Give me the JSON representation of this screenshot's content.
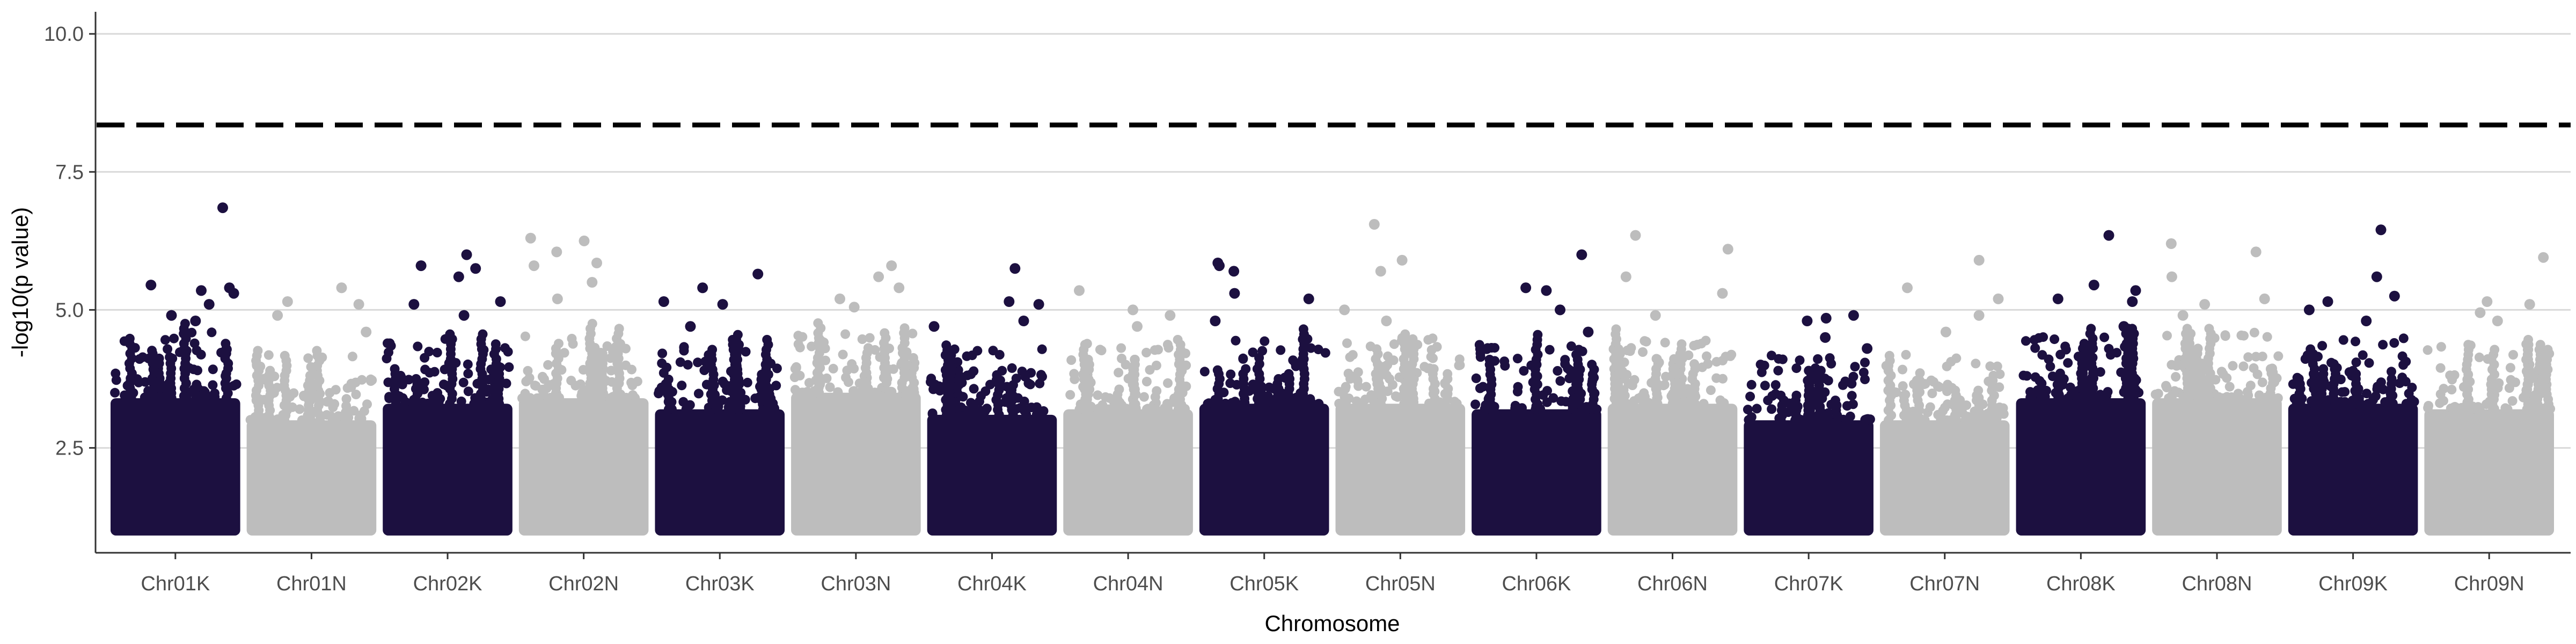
{
  "chart_data": {
    "type": "scatter",
    "subtype": "manhattan",
    "xlabel": "Chromosome",
    "ylabel": "-log10(p value)",
    "ylim": [
      0.6,
      10.4
    ],
    "yticks": [
      2.5,
      5.0,
      7.5,
      10.0
    ],
    "ytick_labels": [
      "2.5",
      "5.0",
      "7.5",
      "10.0"
    ],
    "grid": "horizontal major gridlines only",
    "significance_threshold": 8.35,
    "colors": {
      "dark": "#1c1040",
      "light": "#bdbdbd",
      "threshold": "#000000",
      "grid": "#d9d9d9"
    },
    "chromosomes": [
      {
        "name": "Chr01K",
        "color": "dark",
        "band_top": 3.4,
        "peaks": [
          6.85,
          5.45,
          5.4,
          5.35,
          5.3,
          5.1,
          4.9,
          4.8
        ]
      },
      {
        "name": "Chr01N",
        "color": "light",
        "band_top": 3.0,
        "peaks": [
          5.4,
          5.15,
          5.1,
          4.9,
          4.6
        ]
      },
      {
        "name": "Chr02K",
        "color": "dark",
        "band_top": 3.3,
        "peaks": [
          6.0,
          5.8,
          5.75,
          5.6,
          5.15,
          5.1,
          4.9
        ]
      },
      {
        "name": "Chr02N",
        "color": "light",
        "band_top": 3.4,
        "peaks": [
          6.3,
          6.25,
          6.05,
          5.85,
          5.8,
          5.5,
          5.2
        ]
      },
      {
        "name": "Chr03K",
        "color": "dark",
        "band_top": 3.2,
        "peaks": [
          5.65,
          5.4,
          5.15,
          5.1,
          4.7
        ]
      },
      {
        "name": "Chr03N",
        "color": "light",
        "band_top": 3.5,
        "peaks": [
          5.8,
          5.6,
          5.4,
          5.2,
          5.05
        ]
      },
      {
        "name": "Chr04K",
        "color": "dark",
        "band_top": 3.1,
        "peaks": [
          5.75,
          5.15,
          5.1,
          4.8,
          4.7
        ]
      },
      {
        "name": "Chr04N",
        "color": "light",
        "band_top": 3.2,
        "peaks": [
          5.35,
          5.0,
          4.9,
          4.7
        ]
      },
      {
        "name": "Chr05K",
        "color": "dark",
        "band_top": 3.3,
        "peaks": [
          5.85,
          5.8,
          5.7,
          5.3,
          5.2,
          4.8
        ]
      },
      {
        "name": "Chr05N",
        "color": "light",
        "band_top": 3.3,
        "peaks": [
          6.55,
          5.9,
          5.7,
          5.0,
          4.8
        ]
      },
      {
        "name": "Chr06K",
        "color": "dark",
        "band_top": 3.2,
        "peaks": [
          6.0,
          5.4,
          5.35,
          5.0,
          4.6
        ]
      },
      {
        "name": "Chr06N",
        "color": "light",
        "band_top": 3.3,
        "peaks": [
          6.35,
          6.1,
          5.6,
          5.3,
          4.9
        ]
      },
      {
        "name": "Chr07K",
        "color": "dark",
        "band_top": 3.0,
        "peaks": [
          4.9,
          4.85,
          4.8,
          4.5,
          4.3
        ]
      },
      {
        "name": "Chr07N",
        "color": "light",
        "band_top": 3.0,
        "peaks": [
          5.9,
          5.4,
          5.2,
          4.9,
          4.6
        ]
      },
      {
        "name": "Chr08K",
        "color": "dark",
        "band_top": 3.4,
        "peaks": [
          6.35,
          5.45,
          5.35,
          5.2,
          5.15,
          4.7
        ]
      },
      {
        "name": "Chr08N",
        "color": "light",
        "band_top": 3.4,
        "peaks": [
          6.2,
          6.05,
          5.6,
          5.2,
          5.1,
          4.9
        ]
      },
      {
        "name": "Chr09K",
        "color": "dark",
        "band_top": 3.3,
        "peaks": [
          6.45,
          5.6,
          5.25,
          5.15,
          5.0,
          4.8
        ]
      },
      {
        "name": "Chr09N",
        "color": "light",
        "band_top": 3.2,
        "peaks": [
          5.95,
          5.15,
          5.1,
          4.95,
          4.8
        ]
      }
    ]
  }
}
